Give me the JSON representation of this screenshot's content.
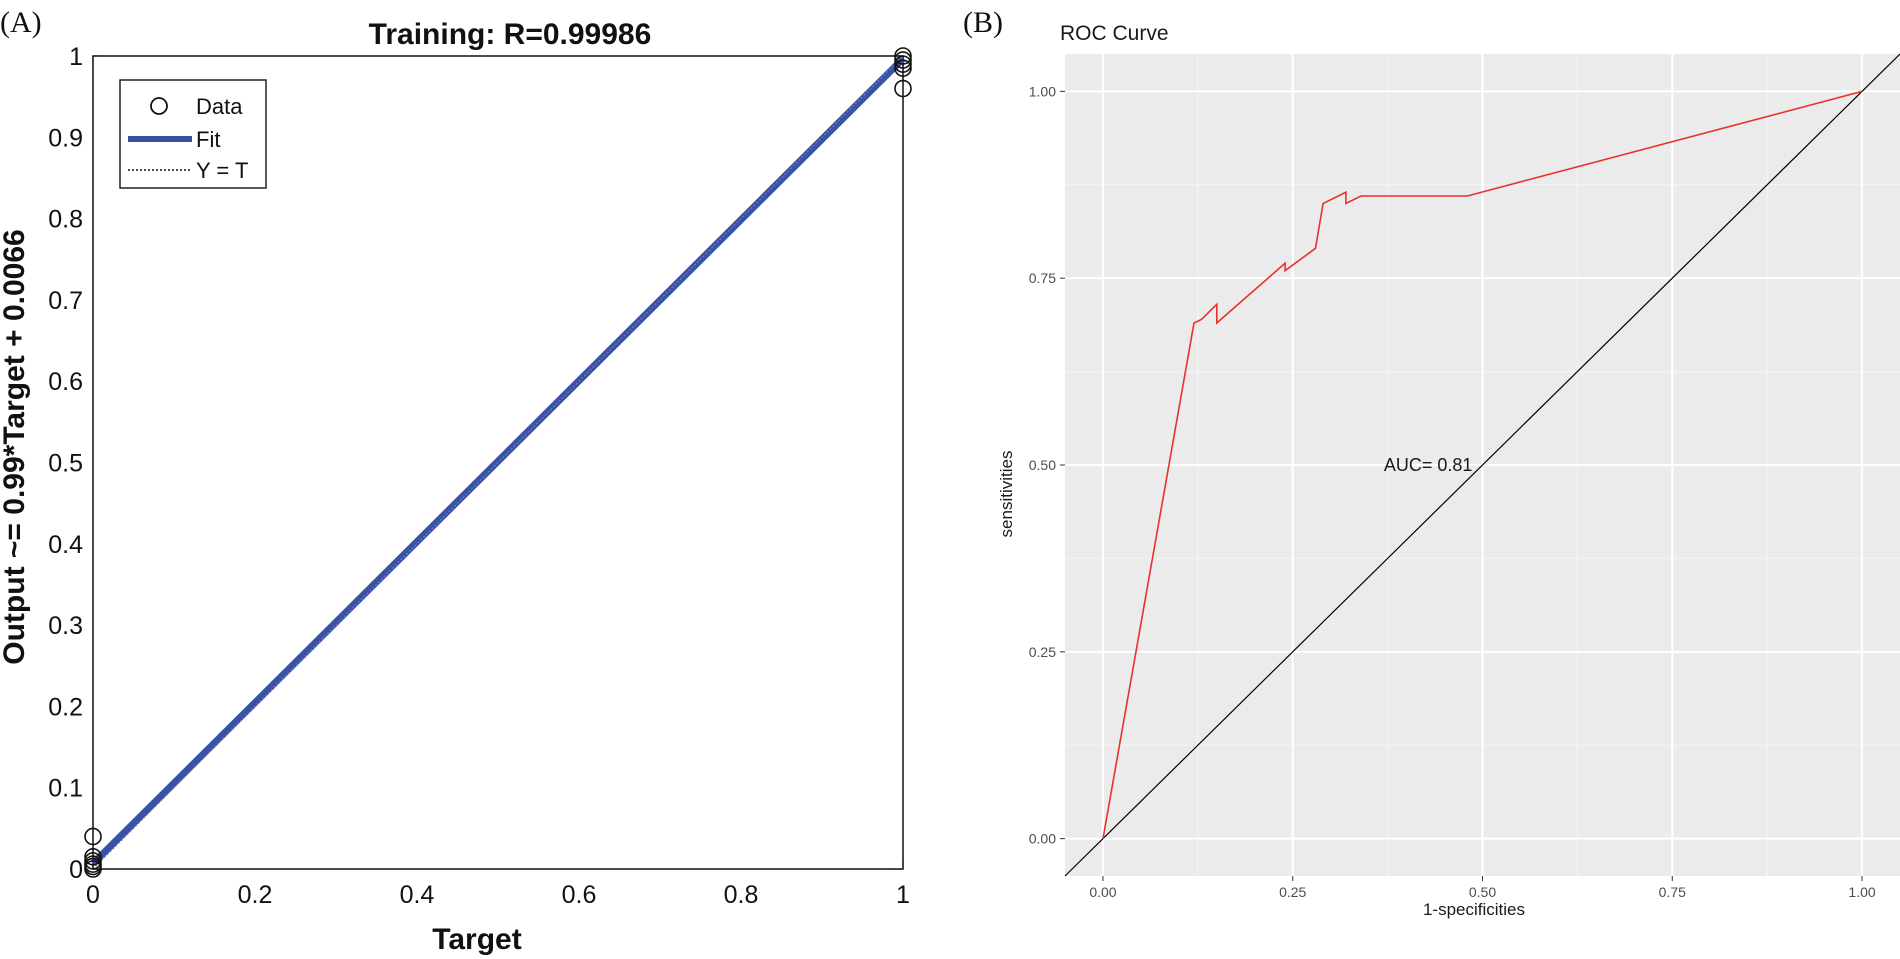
{
  "panels": {
    "a_label": "(A)",
    "b_label": "(B)"
  },
  "chart_data": [
    {
      "type": "scatter",
      "title": "Training: R=0.99986",
      "xlabel": "Target",
      "ylabel": "Output ~= 0.99*Target + 0.0066",
      "xlim": [
        0,
        1
      ],
      "ylim": [
        0,
        1
      ],
      "xticks": [
        "0",
        "0.2",
        "0.4",
        "0.6",
        "0.8",
        "1"
      ],
      "yticks": [
        "0",
        "0.1",
        "0.2",
        "0.3",
        "0.4",
        "0.5",
        "0.6",
        "0.7",
        "0.8",
        "0.9",
        "1"
      ],
      "grid": false,
      "legend_position": "top-left",
      "legend": [
        "Data",
        "Fit",
        "Y = T"
      ],
      "series": [
        {
          "name": "Data",
          "points": [
            [
              0,
              0.0
            ],
            [
              0,
              0.003
            ],
            [
              0,
              0.006
            ],
            [
              0,
              0.01
            ],
            [
              0,
              0.015
            ],
            [
              0,
              0.04
            ],
            [
              1,
              1.0
            ],
            [
              1,
              0.995
            ],
            [
              1,
              0.99
            ],
            [
              1,
              0.985
            ],
            [
              1,
              0.96
            ]
          ]
        },
        {
          "name": "Fit",
          "x": [
            0,
            1
          ],
          "y": [
            0.0066,
            0.9966
          ],
          "color": "#3853a4"
        },
        {
          "name": "Y = T",
          "x": [
            0,
            1
          ],
          "y": [
            0,
            1
          ],
          "style": "dotted"
        }
      ]
    },
    {
      "type": "line",
      "title": "ROC Curve",
      "xlabel": "1-specificities",
      "ylabel": "sensitivities",
      "xlim": [
        -0.05,
        1.05
      ],
      "ylim": [
        -0.05,
        1.05
      ],
      "xticks": [
        "0.00",
        "0.25",
        "0.50",
        "0.75",
        "1.00"
      ],
      "yticks": [
        "0.00",
        "0.25",
        "0.50",
        "0.75",
        "1.00"
      ],
      "grid": true,
      "background": "#ebebeb",
      "annotation": {
        "text": "AUC= 0.81",
        "x": 0.37,
        "y": 0.5
      },
      "series": [
        {
          "color": "#e8312a",
          "x": [
            0.0,
            0.12,
            0.13,
            0.15,
            0.15,
            0.24,
            0.24,
            0.28,
            0.29,
            0.32,
            0.32,
            0.34,
            0.48,
            1.0
          ],
          "y": [
            0.0,
            0.69,
            0.695,
            0.715,
            0.69,
            0.77,
            0.76,
            0.79,
            0.85,
            0.865,
            0.85,
            0.86,
            0.86,
            1.0
          ]
        },
        {
          "color": "#000000",
          "x": [
            -0.05,
            1.05
          ],
          "y": [
            -0.05,
            1.05
          ]
        }
      ]
    }
  ]
}
